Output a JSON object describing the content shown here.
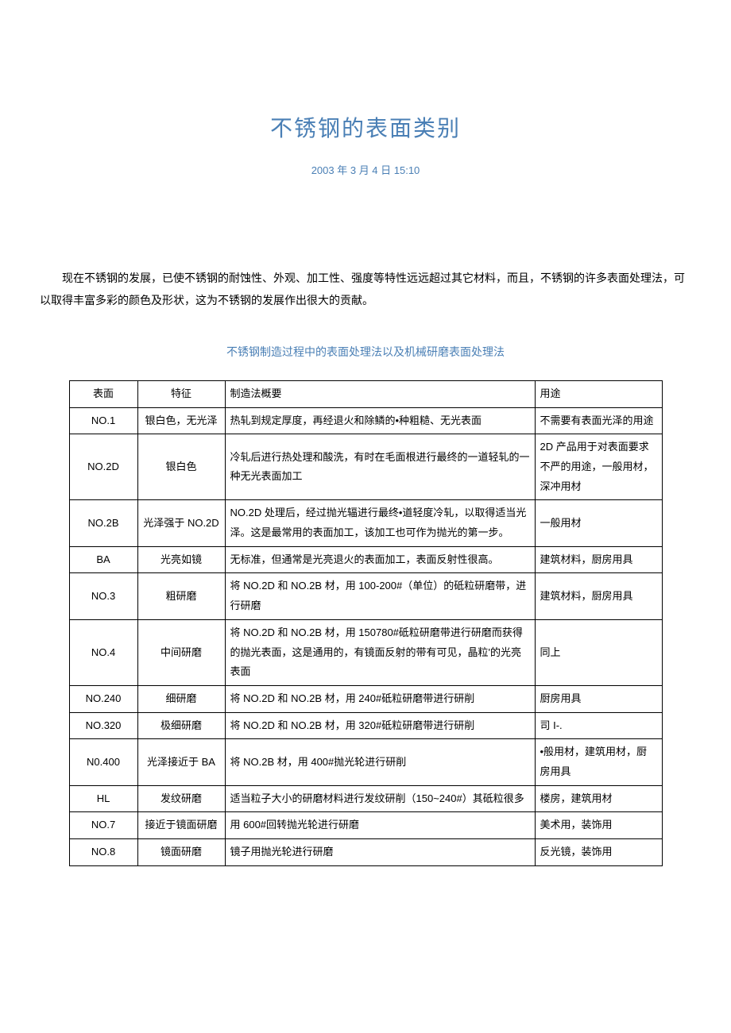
{
  "title": "不锈钢的表面类别",
  "date": "2003 年 3 月 4 日 15:10",
  "intro": "现在不锈钢的发展，已使不锈钢的耐蚀性、外观、加工性、强度等特性远远超过其它材料，而且，不锈钢的许多表面处理法，可以取得丰富多彩的颜色及形状，这为不锈钢的发展作出很大的贡献。",
  "subtitle": "不锈钢制造过程中的表面处理法以及机械研磨表面处理法",
  "colors": {
    "accent": "#4a7fb5",
    "text": "#000000",
    "border": "#000000",
    "background": "#ffffff"
  },
  "table": {
    "headers": [
      "表面",
      "特征",
      "制造法概要",
      "用途"
    ],
    "rows": [
      {
        "surface": "NO.1",
        "feature": "银白色，无光泽",
        "method": "热轧到规定厚度，再经退火和除鳞的•种粗糙、无光表面",
        "usage": "不需要有表面光泽的用途"
      },
      {
        "surface": "NO.2D",
        "feature": "银白色",
        "method": "冷轧后进行热处理和酸洗，有时在毛面根进行最终的一道轻轧的一种无光表面加工",
        "usage": "2D 产品用于对表面要求不严的用途，一般用材，深冲用材"
      },
      {
        "surface": "NO.2B",
        "feature": "光泽强于 NO.2D",
        "method": "NO.2D 处理后，经过抛光辐进行最终•道轻度冷轧，以取得适当光泽。这是最常用的表面加工，该加工也可作为抛光的第一步。",
        "usage": "一般用材"
      },
      {
        "surface": "BA",
        "feature": "光亮如镜",
        "method": "无标准，但通常是光亮退火的表面加工，表面反射性很高。",
        "usage": "建筑材料，厨房用具"
      },
      {
        "surface": "NO.3",
        "feature": "粗研磨",
        "method": "将 NO.2D 和 NO.2B 材，用 100-200#（单位）的砥粒研磨带，进行研磨",
        "usage": "建筑材料，厨房用具"
      },
      {
        "surface": "NO.4",
        "feature": "中间研磨",
        "method": "将 NO.2D 和 NO.2B 材，用 150780#砥粒研磨带进行研磨而获得的抛光表面，这是通用的，有镜面反射的带有可见，晶粒'的光亮表面",
        "usage": "同上"
      },
      {
        "surface": "NO.240",
        "feature": "细研磨",
        "method": "将 NO.2D 和 NO.2B 材，用 240#砥粒研磨带进行研削",
        "usage": "厨房用具"
      },
      {
        "surface": "NO.320",
        "feature": "极细研磨",
        "method": "将 NO.2D 和 NO.2B 材，用 320#砥粒研磨带进行研削",
        "usage": "司 I-."
      },
      {
        "surface": "N0.400",
        "feature": "光泽接近于 BA",
        "method": "将 NO.2B 材，用 400#抛光轮进行研削",
        "usage": "•般用材，建筑用材，厨房用具"
      },
      {
        "surface": "HL",
        "feature": "发纹研磨",
        "method": "适当粒子大小的研磨材料进行发纹研削（150~240#）其砥粒很多",
        "usage": "楼房，建筑用材"
      },
      {
        "surface": "NO.7",
        "feature": "接近于镜面研磨",
        "method": "用 600#回转抛光轮进行研磨",
        "usage": "美术用，装饰用"
      },
      {
        "surface": "NO.8",
        "feature": "镜面研磨",
        "method": "镜子用抛光轮进行研磨",
        "usage": "反光镜，装饰用"
      }
    ]
  }
}
